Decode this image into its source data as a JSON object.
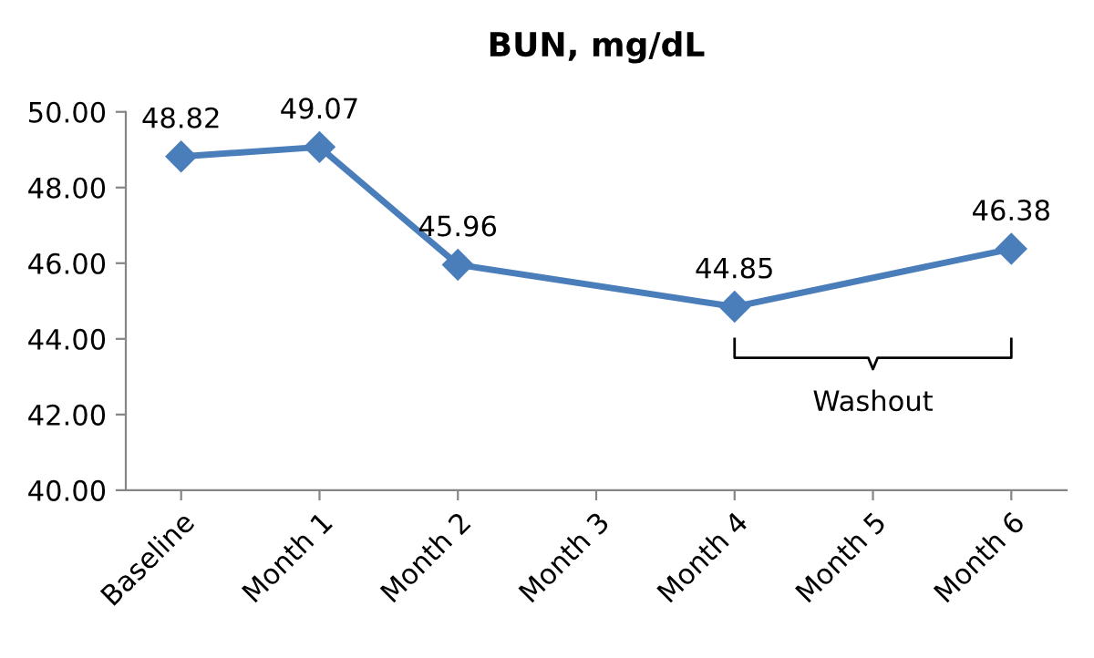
{
  "chart_data": {
    "type": "line",
    "title": "BUN, mg/dL",
    "categories": [
      "Baseline",
      "Month 1",
      "Month 2",
      "Month 3",
      "Month 4",
      "Month 5",
      "Month 6"
    ],
    "series": [
      {
        "color": "#4a7ebb",
        "values": [
          48.82,
          49.07,
          45.96,
          null,
          44.85,
          null,
          46.38
        ]
      }
    ],
    "ylim": [
      40,
      50
    ],
    "yticks": [
      {
        "value": 40,
        "label": "40.00"
      },
      {
        "value": 42,
        "label": "42.00"
      },
      {
        "value": 44,
        "label": "44.00"
      },
      {
        "value": 46,
        "label": "46.00"
      },
      {
        "value": 48,
        "label": "48.00"
      },
      {
        "value": 50,
        "label": "50.00"
      }
    ],
    "marker": "diamond",
    "data_labels": true,
    "grid": false,
    "annotations": [
      "Washout"
    ]
  }
}
